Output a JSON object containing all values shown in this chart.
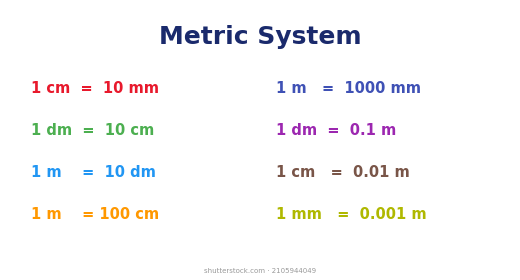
{
  "title": "Metric System",
  "title_color": "#1a2a6c",
  "title_fontsize": 18,
  "background_color": "#ffffff",
  "watermark": "shutterstock.com · 2105944049",
  "left_rows": [
    {
      "text": "1 cm  =  10 mm",
      "color": "#e8192c"
    },
    {
      "text": "1 dm  =  10 cm",
      "color": "#4caf50"
    },
    {
      "text": "1 m    =  10 dm",
      "color": "#2196f3"
    },
    {
      "text": "1 m    = 100 cm",
      "color": "#ff9800"
    }
  ],
  "right_rows": [
    {
      "text": "1 m   =  1000 mm",
      "color": "#3f51b5"
    },
    {
      "text": "1 dm  =  0.1 m",
      "color": "#9c27b0"
    },
    {
      "text": "1 cm   =  0.01 m",
      "color": "#795548"
    },
    {
      "text": "1 mm   =  0.001 m",
      "color": "#afb800"
    }
  ],
  "row_fontsize": 10.5,
  "font_family": "DejaVu Sans"
}
